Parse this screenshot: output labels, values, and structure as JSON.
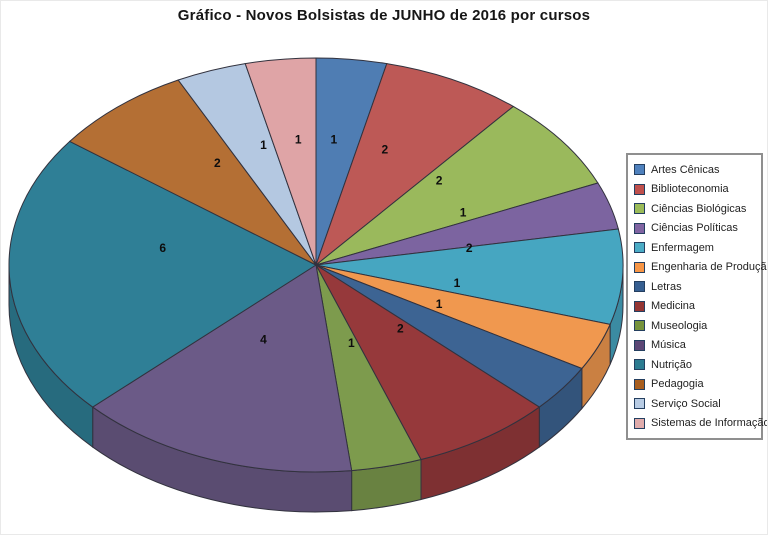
{
  "chart_data": {
    "type": "pie",
    "style": "3d",
    "title": "Gráfico - Novos Bolsistas de JUNHO de 2016 por cursos",
    "legend_position": "right",
    "data_labels": "values",
    "start_angle_deg": 0,
    "direction": "clockwise",
    "total": 27,
    "categories": [
      "Artes Cênicas",
      "Biblioteconomia",
      "Ciências Biológicas",
      "Ciências Políticas",
      "Enfermagem",
      "Engenharia de Produção",
      "Letras",
      "Medicina",
      "Museologia",
      "Música",
      "Nutrição",
      "Pedagogia",
      "Serviço Social",
      "Sistemas de Informação"
    ],
    "values": [
      1,
      2,
      2,
      1,
      2,
      1,
      1,
      2,
      1,
      4,
      6,
      2,
      1,
      1
    ],
    "slice_colors": [
      "#4F7DB3",
      "#BD5956",
      "#9AB95C",
      "#7C64A0",
      "#46A6C1",
      "#F0984F",
      "#3D6493",
      "#96393B",
      "#7D9B4D",
      "#6B5A87",
      "#2F7F96",
      "#B46F34",
      "#B4C8E1",
      "#DFA4A6"
    ],
    "legend_colors": [
      "#4F81BD",
      "#C0504D",
      "#9BBB59",
      "#8064A2",
      "#4BACC6",
      "#F79646",
      "#365F91",
      "#943634",
      "#76933C",
      "#5C4776",
      "#2C7C91",
      "#A85E1F",
      "#B8CCE4",
      "#E0ACAC"
    ],
    "slice_border_color": "#32323E",
    "label_color": "#0d0d0d",
    "title_color": "#161616"
  }
}
